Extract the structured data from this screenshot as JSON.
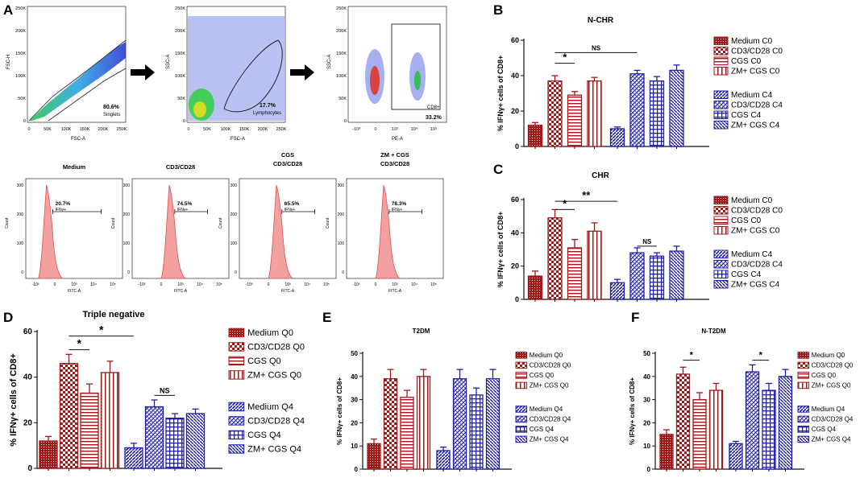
{
  "figure": {
    "panel_letters": [
      "A",
      "B",
      "C",
      "D",
      "E",
      "F"
    ],
    "flow_top": [
      {
        "ylabel": "FSC-H",
        "xlabel": "FSC-A",
        "gate_pct": "80.6%",
        "gate_name": "Singlets"
      },
      {
        "ylabel": "SSC-A",
        "xlabel": "FSC-A",
        "gate_pct": "17.7%",
        "gate_name": "Lymphocytes"
      },
      {
        "ylabel": "SSC-A",
        "xlabel": "PE-A",
        "gate_name": "CD8+",
        "gate_pct": "33.2%"
      }
    ],
    "flow_top_xticks": [
      "0",
      "50K",
      "100K",
      "150K",
      "200K",
      "250K"
    ],
    "flow_top_yticks": [
      "250K",
      "200K",
      "150K",
      "100K",
      "50K",
      "0"
    ],
    "flow_pe_xticks": [
      "-10³",
      "0",
      "10³",
      "10⁴",
      "10⁵"
    ],
    "flow_pe_yticks": [
      "250K",
      "200K",
      "150K",
      "100K",
      "50K",
      "0"
    ],
    "histograms": [
      {
        "title": "Medium",
        "title2": "",
        "pct": "20.7%",
        "gate": "IFNγ+",
        "ylabel": "Count",
        "xlabel": "FITC-A"
      },
      {
        "title": "CD3/CD28",
        "title2": "",
        "pct": "74.5%",
        "gate": "IFNγ+",
        "ylabel": "Count",
        "xlabel": "FITC-A"
      },
      {
        "title": "CGS",
        "title2": "CD3/CD28",
        "pct": "65.5%",
        "gate": "IFNγ+",
        "ylabel": "Count",
        "xlabel": "FITC-A"
      },
      {
        "title": "ZM + CGS",
        "title2": "CD3/CD28",
        "pct": "78.3%",
        "gate": "IFNγ+",
        "ylabel": "Count",
        "xlabel": "FITC-A"
      }
    ],
    "hist_yticks": [
      "300",
      "200",
      "100",
      "0"
    ],
    "hist_xticks": [
      "-10³",
      "0",
      "10³",
      "10⁴",
      "10⁵"
    ]
  },
  "colors": {
    "red": "#a01818",
    "blue": "#1f1fa8",
    "histfill": "#f2a0a0",
    "histline": "#e05050"
  },
  "chart_data": [
    {
      "panel": "B",
      "type": "bar",
      "title": "N-CHR",
      "ylabel": "% IFNγ+ cells of CD8+",
      "ylim": [
        0,
        60
      ],
      "yticks": [
        0,
        20,
        40,
        60
      ],
      "series": [
        {
          "name": "Medium C0",
          "value": 12,
          "err": 1.5
        },
        {
          "name": "CD3/CD28 C0",
          "value": 37,
          "err": 3
        },
        {
          "name": "CGS C0",
          "value": 29,
          "err": 2
        },
        {
          "name": "ZM+ CGS C0",
          "value": 37,
          "err": 2
        },
        {
          "name": "Medium C4",
          "value": 10,
          "err": 1
        },
        {
          "name": "CD3/CD28 C4",
          "value": 41,
          "err": 2
        },
        {
          "name": "CGS C4",
          "value": 37,
          "err": 2.5
        },
        {
          "name": "ZM+ CGS C4",
          "value": 43,
          "err": 3
        }
      ],
      "sig": [
        {
          "from": 1,
          "to": 2,
          "label": "*",
          "y": 47
        },
        {
          "from": 1,
          "to": 5,
          "label": "NS",
          "y": 53
        }
      ]
    },
    {
      "panel": "C",
      "type": "bar",
      "title": "CHR",
      "ylabel": "% IFNγ+ cells of CD8+",
      "ylim": [
        0,
        60
      ],
      "yticks": [
        0,
        20,
        40,
        60
      ],
      "series": [
        {
          "name": "Medium C0",
          "value": 14,
          "err": 3
        },
        {
          "name": "CD3/CD28 C0",
          "value": 49,
          "err": 5
        },
        {
          "name": "CGS C0",
          "value": 31,
          "err": 5
        },
        {
          "name": "ZM+ CGS C0",
          "value": 41,
          "err": 5
        },
        {
          "name": "Medium C4",
          "value": 10,
          "err": 2
        },
        {
          "name": "CD3/CD28 C4",
          "value": 28,
          "err": 3
        },
        {
          "name": "CGS C4",
          "value": 26,
          "err": 2
        },
        {
          "name": "ZM+ CGS C4",
          "value": 29,
          "err": 3
        }
      ],
      "sig": [
        {
          "from": 1,
          "to": 2,
          "label": "*",
          "y": 54
        },
        {
          "from": 1,
          "to": 4,
          "label": "**",
          "y": 59
        },
        {
          "from": 5,
          "to": 6,
          "label": "NS",
          "y": 32
        }
      ]
    },
    {
      "panel": "D",
      "type": "bar",
      "title": "Triple negative",
      "ylabel": "% IFNγ+ cells of CD8+",
      "ylim": [
        0,
        60
      ],
      "yticks": [
        0,
        20,
        40,
        60
      ],
      "series": [
        {
          "name": "Medium Q0",
          "value": 12,
          "err": 2
        },
        {
          "name": "CD3/CD28 Q0",
          "value": 46,
          "err": 4
        },
        {
          "name": "CGS Q0",
          "value": 33,
          "err": 4
        },
        {
          "name": "ZM+ CGS Q0",
          "value": 42,
          "err": 5
        },
        {
          "name": "Medium Q4",
          "value": 9,
          "err": 2
        },
        {
          "name": "CD3/CD28 Q4",
          "value": 27,
          "err": 3
        },
        {
          "name": "CGS Q4",
          "value": 22,
          "err": 2
        },
        {
          "name": "ZM+ CGS Q4",
          "value": 24,
          "err": 2
        }
      ],
      "sig": [
        {
          "from": 1,
          "to": 2,
          "label": "*",
          "y": 52
        },
        {
          "from": 1,
          "to": 4,
          "label": "*",
          "y": 58
        },
        {
          "from": 5,
          "to": 6,
          "label": "NS",
          "y": 32
        }
      ]
    },
    {
      "panel": "E",
      "type": "bar",
      "title": "T2DM",
      "ylabel": "% IFNγ+ cells of CD8+",
      "ylim": [
        0,
        50
      ],
      "yticks": [
        0,
        10,
        20,
        30,
        40,
        50
      ],
      "series": [
        {
          "name": "Medium Q0",
          "value": 11,
          "err": 2
        },
        {
          "name": "CD3/CD28 Q0",
          "value": 39,
          "err": 4
        },
        {
          "name": "CGS Q0",
          "value": 31,
          "err": 3
        },
        {
          "name": "ZM+ CGS Q0",
          "value": 40,
          "err": 3
        },
        {
          "name": "Medium Q4",
          "value": 8,
          "err": 1.5
        },
        {
          "name": "CD3/CD28 Q4",
          "value": 39,
          "err": 4
        },
        {
          "name": "CGS Q4",
          "value": 32,
          "err": 3
        },
        {
          "name": "ZM+ CGS Q4",
          "value": 39,
          "err": 4
        }
      ],
      "sig": []
    },
    {
      "panel": "F",
      "type": "bar",
      "title": "N-T2DM",
      "ylabel": "% IFNγ+ cells of CD8+",
      "ylim": [
        0,
        50
      ],
      "yticks": [
        0,
        10,
        20,
        30,
        40,
        50
      ],
      "series": [
        {
          "name": "Medium Q0",
          "value": 15,
          "err": 2
        },
        {
          "name": "CD3/CD28 Q0",
          "value": 41,
          "err": 3
        },
        {
          "name": "CGS Q0",
          "value": 30,
          "err": 3
        },
        {
          "name": "ZM+ CGS Q0",
          "value": 34,
          "err": 3
        },
        {
          "name": "Medium Q4",
          "value": 11,
          "err": 1
        },
        {
          "name": "CD3/CD28 Q4",
          "value": 42,
          "err": 3
        },
        {
          "name": "CGS Q4",
          "value": 34,
          "err": 3
        },
        {
          "name": "ZM+ CGS Q4",
          "value": 40,
          "err": 3
        }
      ],
      "sig": [
        {
          "from": 1,
          "to": 2,
          "label": "*",
          "y": 47
        },
        {
          "from": 5,
          "to": 6,
          "label": "*",
          "y": 47
        }
      ]
    }
  ]
}
